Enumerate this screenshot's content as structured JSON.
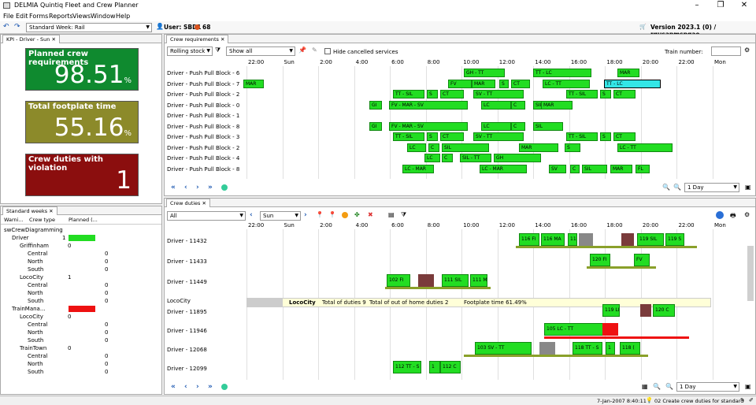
{
  "window": {
    "title": "DELMIA Quintiq Fleet and Crew Planner"
  },
  "menu": [
    "File",
    "Edit",
    "Forms",
    "Reports",
    "Views",
    "Window",
    "Help"
  ],
  "toolbar": {
    "scenario": "Standard Week: Rail",
    "user_label": "User: SBD1",
    "count": "68",
    "version": "Version 2023.1 (0) / rqusapmspqae"
  },
  "kpi_panel": {
    "tab": "KPI - Driver - Sun",
    "tiles": [
      {
        "label": "Planned crew requirements",
        "value": "98.51",
        "unit": "%",
        "color": "#0f8a2f"
      },
      {
        "label": "Total footplate time",
        "value": "55.16",
        "unit": "%",
        "color": "#8c8a2a"
      },
      {
        "label": "Crew duties with violation",
        "value": "1",
        "unit": "",
        "color": "#8b0e0e"
      }
    ]
  },
  "weeks_panel": {
    "tab": "Standard weeks",
    "columns": [
      "Warni...",
      "Crew type",
      "Planned (..."
    ],
    "rows": [
      {
        "label": "swCrewDiagramming",
        "num": "",
        "indent": 0
      },
      {
        "label": "Driver",
        "num": "1",
        "indent": 1
      },
      {
        "label": "Griffinham",
        "num": "0",
        "indent": 2
      },
      {
        "label": "Central",
        "num": "0",
        "indent": 3
      },
      {
        "label": "North",
        "num": "0",
        "indent": 3
      },
      {
        "label": "South",
        "num": "0",
        "indent": 3
      },
      {
        "label": "LocoCity",
        "num": "1",
        "indent": 2
      },
      {
        "label": "Central",
        "num": "0",
        "indent": 3
      },
      {
        "label": "North",
        "num": "0",
        "indent": 3
      },
      {
        "label": "South",
        "num": "0",
        "indent": 3
      },
      {
        "label": "TrainMana...",
        "num": "",
        "indent": 1
      },
      {
        "label": "LocoCity",
        "num": "0",
        "indent": 2
      },
      {
        "label": "Central",
        "num": "0",
        "indent": 3
      },
      {
        "label": "North",
        "num": "0",
        "indent": 3
      },
      {
        "label": "South",
        "num": "0",
        "indent": 3
      },
      {
        "label": "TrainTown",
        "num": "0",
        "indent": 2
      },
      {
        "label": "Central",
        "num": "0",
        "indent": 3
      },
      {
        "label": "North",
        "num": "0",
        "indent": 3
      },
      {
        "label": "South",
        "num": "0",
        "indent": 3
      }
    ]
  },
  "crew_req": {
    "tab": "Crew requirements",
    "filter1": "Rolling stock",
    "filter2": "Show all",
    "hide_cancelled": "Hide cancelled services",
    "train_number_label": "Train number:",
    "zoom": "1 Day",
    "axis": [
      "22:00",
      "Sun",
      "2:00",
      "4:00",
      "6:00",
      "8:00",
      "10:00",
      "12:00",
      "14:00",
      "16:00",
      "18:00",
      "20:00",
      "22:00",
      "Mon"
    ],
    "rows": [
      "Driver - Push Pull Block - 6",
      "Driver - Push Pull Block - 7",
      "Driver - Push Pull Block - 2",
      "Driver - Push Pull Block - 0",
      "Driver - Push Pull Block - 1",
      "Driver - Push Pull Block - 8",
      "Driver - Push Pull Block - 3",
      "Driver - Push Pull Block - 2",
      "Driver - Push Pull Block - 4",
      "Driver - Push Pull Block - 8"
    ],
    "bar_labels": [
      "GH - TT",
      "TT - LC",
      "LC - S",
      "SIL",
      "MAR",
      "FV",
      "MAR",
      "S",
      "CT",
      "LC - TT",
      "TT - LC",
      "TT - SIL",
      "SV - TT",
      "TT - SIL",
      "CT",
      "GI",
      "FV - MAR - SV",
      "LC",
      "C",
      "SIL",
      "MAR",
      "SV - TT",
      "LC - MAR",
      "SIL - TT",
      "GH",
      "SV",
      "FL"
    ]
  },
  "crew_duties": {
    "tab": "Crew duties",
    "filter": "All",
    "day": "Sun",
    "zoom": "1 Day",
    "rows": [
      "Driver - 11432",
      "Driver - 11433",
      "Driver - 11449",
      "LocoCity",
      "Driver - 11895",
      "Driver - 11946",
      "Driver - 12068",
      "Driver - 12099"
    ],
    "summary": {
      "name": "LocoCity",
      "duties": "Total of duties  9",
      "out_of_home": "Total of out of home duties  2",
      "footplate": "Footplate time  61.49%"
    },
    "bar_labels": [
      "116 FI",
      "116 MA",
      "11",
      "119 SIL",
      "119 S",
      "120 FI",
      "FV",
      "102 FI",
      "111 SIL",
      "111 M",
      "119 LI",
      "120 C",
      "105 LC - TT",
      "103 SV - TT",
      "118 TT - S",
      "1",
      "118 (",
      "112 TT - S",
      "112 C"
    ]
  },
  "status": {
    "datetime": "7-Jan-2007 8:40:11",
    "task": "02 Create crew duties for standard week"
  }
}
